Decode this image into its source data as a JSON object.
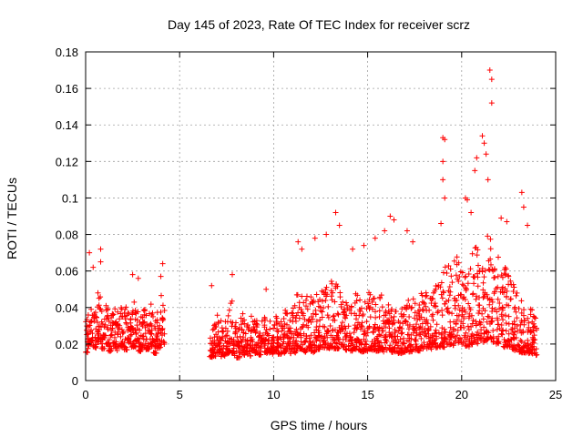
{
  "chart_data": {
    "type": "scatter",
    "title": "Day 145 of 2023, Rate Of TEC Index for receiver scrz",
    "xlabel": "GPS time / hours",
    "ylabel": "ROTI / TECUs",
    "xlim": [
      0,
      25
    ],
    "ylim": [
      0,
      0.18
    ],
    "x_ticks": [
      0,
      5,
      10,
      15,
      20,
      25
    ],
    "y_ticks": [
      0,
      0.02,
      0.04,
      0.06,
      0.08,
      0.1,
      0.12,
      0.14,
      0.16,
      0.18
    ],
    "x_tick_labels": [
      "0",
      "5",
      "10",
      "15",
      "20",
      "25"
    ],
    "y_tick_labels": [
      "0",
      "0.02",
      "0.04",
      "0.06",
      "0.08",
      "0.1",
      "0.12",
      "0.14",
      "0.16",
      "0.18"
    ],
    "grid": true,
    "legend": "none",
    "marker": "plus",
    "series_color": "#ff0000",
    "data_gap_hours": [
      4.3,
      6.6
    ],
    "x": [
      0.1,
      0.3,
      0.5,
      0.7,
      0.9,
      1.1,
      1.3,
      1.5,
      1.7,
      1.9,
      2.1,
      2.3,
      2.5,
      2.7,
      2.9,
      3.1,
      3.3,
      3.5,
      3.7,
      3.9,
      4.1,
      6.7,
      6.9,
      7.1,
      7.3,
      7.5,
      7.7,
      7.9,
      8.1,
      8.3,
      8.5,
      8.7,
      8.9,
      9.1,
      9.3,
      9.5,
      9.7,
      9.9,
      10.1,
      10.3,
      10.5,
      10.7,
      10.9,
      11.1,
      11.3,
      11.5,
      11.7,
      11.9,
      12.1,
      12.3,
      12.5,
      12.7,
      12.9,
      13.1,
      13.3,
      13.5,
      13.7,
      13.9,
      14.1,
      14.3,
      14.5,
      14.7,
      14.9,
      15.1,
      15.3,
      15.5,
      15.7,
      15.9,
      16.1,
      16.3,
      16.5,
      16.7,
      16.9,
      17.1,
      17.3,
      17.5,
      17.7,
      17.9,
      18.1,
      18.3,
      18.5,
      18.7,
      18.9,
      19.1,
      19.3,
      19.5,
      19.7,
      19.9,
      20.1,
      20.3,
      20.5,
      20.7,
      20.9,
      21.1,
      21.3,
      21.5,
      21.7,
      21.9,
      22.1,
      22.3,
      22.5,
      22.7,
      22.9,
      23.1,
      23.3,
      23.5,
      23.7,
      23.9
    ],
    "y": [
      0.022,
      0.028,
      0.025,
      0.03,
      0.024,
      0.027,
      0.022,
      0.026,
      0.023,
      0.025,
      0.024,
      0.029,
      0.026,
      0.024,
      0.022,
      0.025,
      0.023,
      0.026,
      0.021,
      0.024,
      0.028,
      0.018,
      0.02,
      0.022,
      0.019,
      0.021,
      0.024,
      0.02,
      0.018,
      0.022,
      0.02,
      0.019,
      0.023,
      0.021,
      0.02,
      0.022,
      0.021,
      0.02,
      0.022,
      0.02,
      0.021,
      0.023,
      0.022,
      0.024,
      0.026,
      0.028,
      0.025,
      0.027,
      0.024,
      0.026,
      0.027,
      0.029,
      0.028,
      0.03,
      0.029,
      0.028,
      0.027,
      0.026,
      0.025,
      0.027,
      0.026,
      0.024,
      0.025,
      0.027,
      0.026,
      0.025,
      0.026,
      0.024,
      0.025,
      0.023,
      0.024,
      0.022,
      0.023,
      0.025,
      0.024,
      0.026,
      0.025,
      0.027,
      0.028,
      0.026,
      0.028,
      0.03,
      0.031,
      0.032,
      0.034,
      0.033,
      0.035,
      0.036,
      0.034,
      0.032,
      0.035,
      0.037,
      0.036,
      0.038,
      0.04,
      0.042,
      0.038,
      0.036,
      0.034,
      0.032,
      0.03,
      0.028,
      0.026,
      0.025,
      0.024,
      0.023,
      0.022,
      0.021
    ],
    "spread": [
      0.012,
      0.014,
      0.013,
      0.016,
      0.012,
      0.013,
      0.011,
      0.013,
      0.012,
      0.012,
      0.013,
      0.016,
      0.014,
      0.012,
      0.011,
      0.012,
      0.011,
      0.013,
      0.011,
      0.012,
      0.015,
      0.01,
      0.012,
      0.013,
      0.011,
      0.012,
      0.016,
      0.012,
      0.01,
      0.013,
      0.011,
      0.01,
      0.012,
      0.011,
      0.011,
      0.012,
      0.011,
      0.01,
      0.011,
      0.01,
      0.011,
      0.013,
      0.013,
      0.016,
      0.018,
      0.02,
      0.017,
      0.018,
      0.016,
      0.017,
      0.018,
      0.02,
      0.019,
      0.022,
      0.021,
      0.019,
      0.018,
      0.017,
      0.016,
      0.018,
      0.017,
      0.015,
      0.016,
      0.018,
      0.017,
      0.016,
      0.017,
      0.015,
      0.016,
      0.014,
      0.015,
      0.013,
      0.014,
      0.016,
      0.015,
      0.017,
      0.016,
      0.018,
      0.019,
      0.017,
      0.019,
      0.022,
      0.023,
      0.025,
      0.026,
      0.025,
      0.027,
      0.028,
      0.026,
      0.025,
      0.028,
      0.03,
      0.029,
      0.031,
      0.033,
      0.035,
      0.031,
      0.029,
      0.027,
      0.025,
      0.022,
      0.02,
      0.018,
      0.017,
      0.016,
      0.015,
      0.014,
      0.013
    ],
    "peaks": [
      {
        "x": 0.2,
        "y": 0.07
      },
      {
        "x": 0.4,
        "y": 0.062
      },
      {
        "x": 0.8,
        "y": 0.072
      },
      {
        "x": 0.8,
        "y": 0.065
      },
      {
        "x": 2.5,
        "y": 0.058
      },
      {
        "x": 2.8,
        "y": 0.056
      },
      {
        "x": 4.1,
        "y": 0.064
      },
      {
        "x": 4.0,
        "y": 0.057
      },
      {
        "x": 6.7,
        "y": 0.052
      },
      {
        "x": 7.8,
        "y": 0.058
      },
      {
        "x": 9.6,
        "y": 0.05
      },
      {
        "x": 11.3,
        "y": 0.076
      },
      {
        "x": 11.5,
        "y": 0.072
      },
      {
        "x": 12.2,
        "y": 0.078
      },
      {
        "x": 12.8,
        "y": 0.08
      },
      {
        "x": 13.3,
        "y": 0.092
      },
      {
        "x": 13.5,
        "y": 0.085
      },
      {
        "x": 14.2,
        "y": 0.072
      },
      {
        "x": 14.8,
        "y": 0.074
      },
      {
        "x": 15.4,
        "y": 0.078
      },
      {
        "x": 15.9,
        "y": 0.082
      },
      {
        "x": 16.2,
        "y": 0.09
      },
      {
        "x": 16.4,
        "y": 0.088
      },
      {
        "x": 17.1,
        "y": 0.082
      },
      {
        "x": 17.4,
        "y": 0.076
      },
      {
        "x": 18.9,
        "y": 0.086
      },
      {
        "x": 19.0,
        "y": 0.133
      },
      {
        "x": 19.1,
        "y": 0.132
      },
      {
        "x": 19.0,
        "y": 0.12
      },
      {
        "x": 19.0,
        "y": 0.11
      },
      {
        "x": 19.1,
        "y": 0.1
      },
      {
        "x": 20.2,
        "y": 0.1
      },
      {
        "x": 20.3,
        "y": 0.099
      },
      {
        "x": 20.5,
        "y": 0.092
      },
      {
        "x": 20.7,
        "y": 0.115
      },
      {
        "x": 20.8,
        "y": 0.122
      },
      {
        "x": 21.1,
        "y": 0.134
      },
      {
        "x": 21.2,
        "y": 0.13
      },
      {
        "x": 21.3,
        "y": 0.124
      },
      {
        "x": 21.5,
        "y": 0.17
      },
      {
        "x": 21.6,
        "y": 0.165
      },
      {
        "x": 21.6,
        "y": 0.152
      },
      {
        "x": 21.4,
        "y": 0.11
      },
      {
        "x": 22.1,
        "y": 0.089
      },
      {
        "x": 22.4,
        "y": 0.087
      },
      {
        "x": 23.2,
        "y": 0.103
      },
      {
        "x": 23.3,
        "y": 0.095
      },
      {
        "x": 23.5,
        "y": 0.085
      }
    ]
  }
}
